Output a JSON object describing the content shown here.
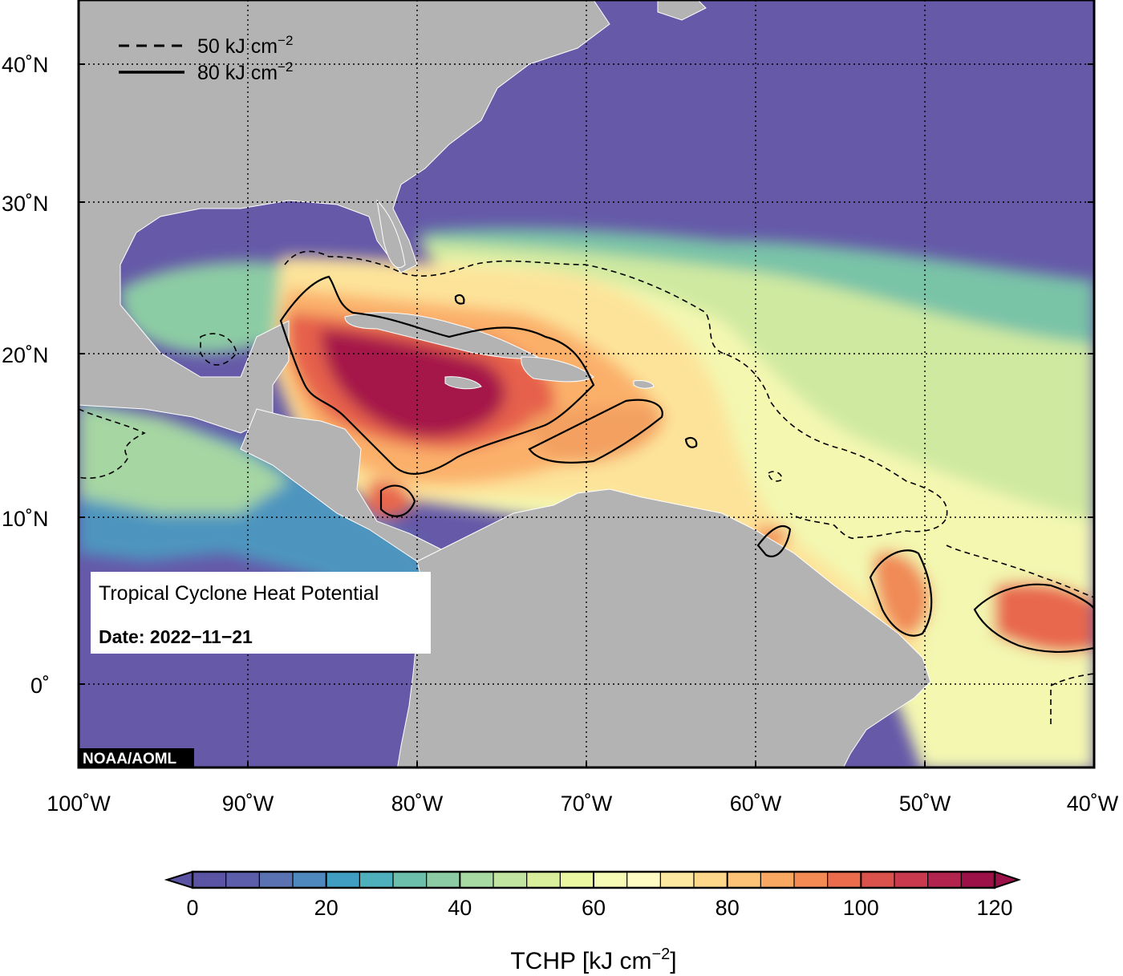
{
  "map": {
    "title": "Tropical Cyclone Heat Potential",
    "date_label": "Date: 2022−11−21",
    "credit": "NOAA/AOML",
    "variable": "TCHP",
    "region": "Gulf of Mexico, Caribbean Sea and tropical western Atlantic",
    "lon_range": [
      -100,
      -40
    ],
    "lat_range": [
      -5,
      45
    ],
    "land_color": "#b3b3b3",
    "gridlines": "dotted"
  },
  "axes": {
    "lon_ticks": [
      "100˚W",
      "90˚W",
      "80˚W",
      "70˚W",
      "60˚W",
      "50˚W",
      "40˚W"
    ],
    "lat_ticks": [
      "40˚N",
      "30˚N",
      "20˚N",
      "10˚N",
      "0˚"
    ]
  },
  "legend": {
    "placement": "top-left",
    "dashed_label": "50 kJ cm",
    "solid_label": "80 kJ cm",
    "exponent": "−2"
  },
  "colorbar": {
    "label": "TCHP [kJ cm",
    "label_exponent": "−2",
    "label_close": "]",
    "min": 0,
    "max": 120,
    "ticks": [
      "0",
      "20",
      "40",
      "60",
      "80",
      "100",
      "120"
    ],
    "colors": [
      "#5b54a4",
      "#5d5eab",
      "#5a72b2",
      "#4e88bc",
      "#3f9ec2",
      "#4fb0bd",
      "#6cbfaa",
      "#8ccca4",
      "#a7d9a3",
      "#c1e4a0",
      "#d9ef9c",
      "#ebf7a1",
      "#f5fbb4",
      "#fefcc3",
      "#fde9a0",
      "#fdd88a",
      "#fcc275",
      "#f9a862",
      "#f48b55",
      "#ea6c4d",
      "#db514c",
      "#c93a4f",
      "#b2244e",
      "#9c1148"
    ]
  }
}
